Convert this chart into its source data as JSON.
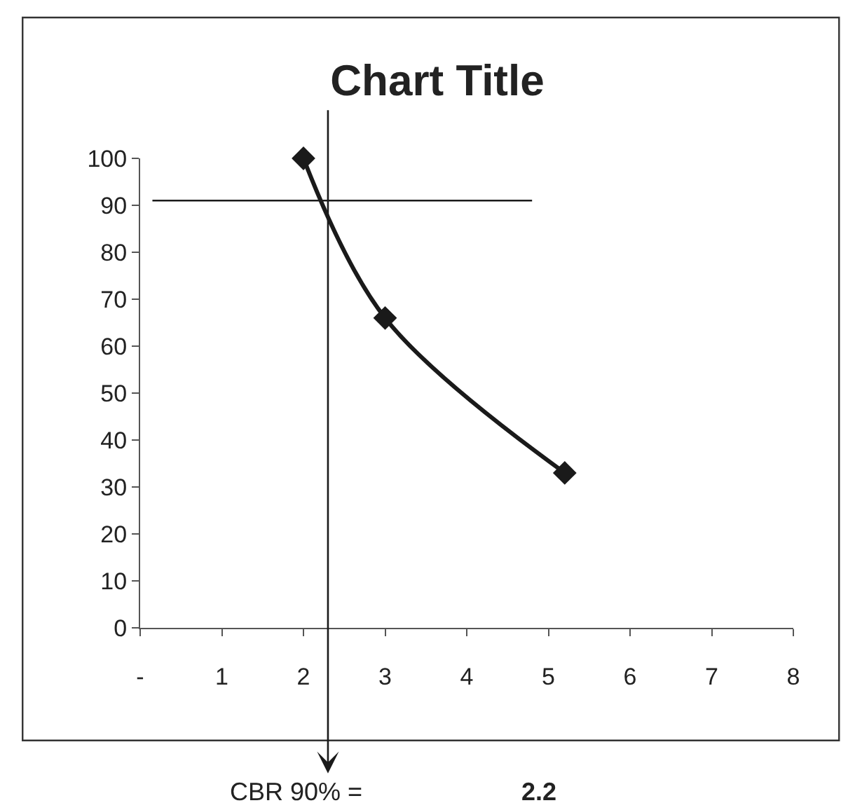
{
  "chart_data": {
    "type": "line",
    "title": "Chart Title",
    "x": [
      2,
      3,
      5.2
    ],
    "series": [
      {
        "color": "#1a1a1a",
        "values": [
          100,
          66,
          33
        ],
        "marker": "diamond"
      },
      {
        "color": "#1a1a1a",
        "x": [
          0.15,
          4.8
        ],
        "values": [
          91,
          91
        ],
        "marker": "none"
      }
    ],
    "ref_lines": [
      {
        "axis": "x",
        "value": 2.3,
        "color": "#1a1a1a"
      }
    ],
    "annotations": [
      "CBR 90% =",
      "2.2"
    ],
    "xlim": [
      0,
      8
    ],
    "xticks": [
      {
        "value": 0,
        "label": "-"
      },
      1,
      2,
      3,
      4,
      5,
      6,
      7,
      8
    ],
    "ylim": [
      0,
      100
    ],
    "yticks": [
      0,
      10,
      20,
      30,
      40,
      50,
      60,
      70,
      80,
      90,
      100
    ],
    "legend": false
  }
}
